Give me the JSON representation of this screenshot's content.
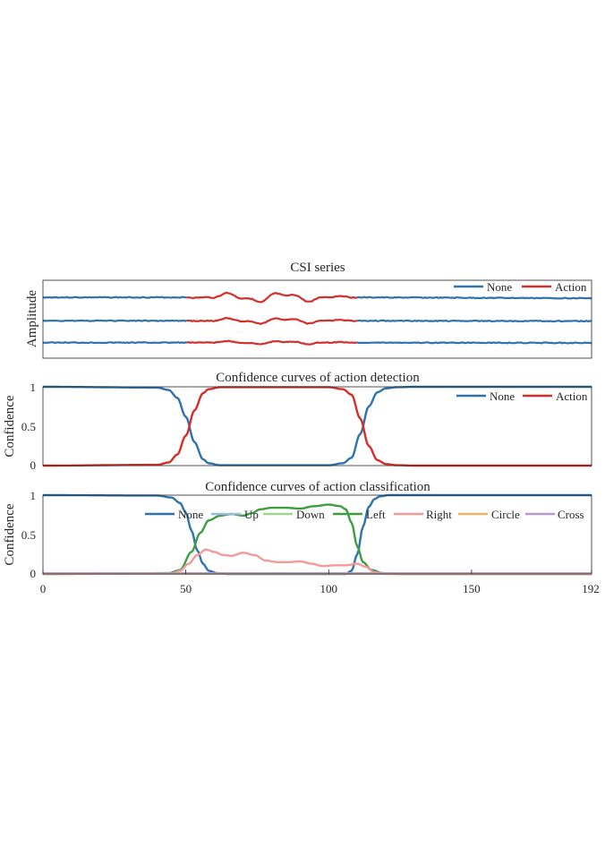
{
  "chart_data": [
    {
      "type": "line",
      "title": "CSI series",
      "ylabel": "Amplitude",
      "xlim": [
        0,
        192
      ],
      "legend": {
        "location": "top-right",
        "entries": [
          "None",
          "Action"
        ]
      },
      "action_segment": [
        50,
        110
      ],
      "series": [
        {
          "name": "None",
          "color": "#2f72ad",
          "row": "upper",
          "level": 0.78
        },
        {
          "name": "None",
          "color": "#2f72ad",
          "row": "middle",
          "level": 0.48
        },
        {
          "name": "None",
          "color": "#2f72ad",
          "row": "lower",
          "level": 0.2
        },
        {
          "name": "Action",
          "color": "#d42e2b",
          "rows": [
            "upper",
            "middle",
            "lower"
          ],
          "x_range": [
            50,
            110
          ]
        }
      ]
    },
    {
      "type": "line",
      "title": "Confidence curves of action detection",
      "ylabel": "Confidence",
      "xlim": [
        0,
        192
      ],
      "ylim": [
        0,
        1
      ],
      "yticks": [
        "0",
        "0.5",
        "1"
      ],
      "legend": {
        "location": "top-right",
        "entries": [
          "None",
          "Action"
        ]
      },
      "series": [
        {
          "name": "None",
          "color": "#2f72ad",
          "x": [
            0,
            40,
            44,
            47,
            50,
            53,
            56,
            58,
            62,
            100,
            105,
            108,
            111,
            114,
            117,
            120,
            124,
            130,
            192
          ],
          "y": [
            1,
            0.99,
            0.96,
            0.86,
            0.62,
            0.3,
            0.08,
            0.03,
            0.005,
            0.005,
            0.03,
            0.1,
            0.4,
            0.75,
            0.93,
            0.98,
            0.995,
            1,
            1
          ]
        },
        {
          "name": "Action",
          "color": "#d42e2b",
          "x": [
            0,
            40,
            44,
            47,
            50,
            53,
            56,
            58,
            62,
            100,
            105,
            108,
            111,
            114,
            117,
            120,
            124,
            130,
            192
          ],
          "y": [
            0,
            0.01,
            0.04,
            0.14,
            0.38,
            0.7,
            0.92,
            0.97,
            0.995,
            0.995,
            0.97,
            0.9,
            0.6,
            0.25,
            0.07,
            0.02,
            0.005,
            0,
            0
          ]
        }
      ]
    },
    {
      "type": "line",
      "title": "Confidence curves of action classification",
      "ylabel": "Confidence",
      "xlabel": "",
      "xlim": [
        0,
        192
      ],
      "ylim": [
        0,
        1
      ],
      "xticks": [
        "0",
        "50",
        "100",
        "150",
        "192"
      ],
      "yticks": [
        "0",
        "0.5",
        "1"
      ],
      "legend": {
        "location": "top",
        "entries": [
          "None",
          "Up",
          "Down",
          "Left",
          "Right",
          "Circle",
          "Cross"
        ]
      },
      "series": [
        {
          "name": "None",
          "color": "#2f72ad",
          "x": [
            0,
            40,
            45,
            48,
            50,
            52,
            54,
            56,
            58,
            61,
            65,
            106,
            108,
            110,
            112,
            114,
            116,
            118,
            121,
            125,
            192
          ],
          "y": [
            1,
            0.995,
            0.97,
            0.9,
            0.78,
            0.55,
            0.3,
            0.13,
            0.04,
            0.01,
            0,
            0,
            0.04,
            0.25,
            0.6,
            0.85,
            0.95,
            0.985,
            1,
            1,
            1
          ]
        },
        {
          "name": "Up",
          "color": "#9db8e3",
          "x": [
            0,
            192
          ],
          "y": [
            0.004,
            0.004
          ]
        },
        {
          "name": "Down",
          "color": "#9fd78e",
          "x": [
            0,
            192
          ],
          "y": [
            0.002,
            0.002
          ]
        },
        {
          "name": "Left",
          "color": "#3f9d3f",
          "x": [
            0,
            44,
            48,
            52,
            55,
            58,
            62,
            66,
            70,
            73,
            76,
            80,
            85,
            90,
            95,
            100,
            104,
            106,
            108,
            110,
            112,
            115,
            119,
            125,
            192
          ],
          "y": [
            0,
            0.01,
            0.05,
            0.28,
            0.52,
            0.68,
            0.74,
            0.76,
            0.74,
            0.77,
            0.82,
            0.84,
            0.84,
            0.83,
            0.86,
            0.88,
            0.86,
            0.82,
            0.65,
            0.35,
            0.15,
            0.05,
            0.01,
            0,
            0
          ]
        },
        {
          "name": "Right",
          "color": "#f59a9a",
          "x": [
            0,
            45,
            48,
            51,
            54,
            57,
            60,
            63,
            66,
            70,
            74,
            78,
            82,
            86,
            90,
            94,
            98,
            102,
            106,
            110,
            113,
            116,
            120,
            192
          ],
          "y": [
            0,
            0.005,
            0.04,
            0.13,
            0.24,
            0.31,
            0.28,
            0.24,
            0.23,
            0.27,
            0.24,
            0.17,
            0.15,
            0.15,
            0.16,
            0.13,
            0.1,
            0.11,
            0.11,
            0.13,
            0.09,
            0.02,
            0,
            0
          ]
        },
        {
          "name": "Circle",
          "color": "#f6b26b",
          "x": [
            0,
            192
          ],
          "y": [
            0.006,
            0.006
          ]
        },
        {
          "name": "Cross",
          "color": "#b79ac9",
          "x": [
            0,
            192
          ],
          "y": [
            0.008,
            0.008
          ]
        }
      ]
    }
  ]
}
